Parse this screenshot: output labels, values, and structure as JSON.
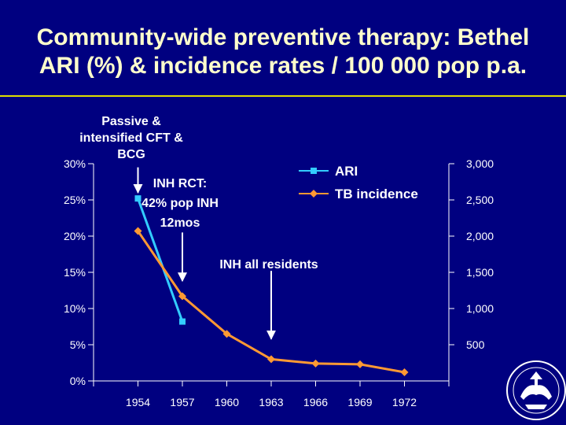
{
  "slide": {
    "title_line1": "Community-wide preventive therapy: Bethel",
    "title_line2": "ARI (%) & incidence rates / 100 000 pop p.a."
  },
  "colors": {
    "background": "#000080",
    "title": "#ffffcc",
    "rule": "#e0e000",
    "ari": "#33ccff",
    "tb": "#ff9933",
    "axis": "#ffffff"
  },
  "chart_data": {
    "type": "line",
    "x": [
      1954,
      1957,
      1960,
      1963,
      1966,
      1969,
      1972
    ],
    "x_tick_labels": [
      "1954",
      "1957",
      "1960",
      "1963",
      "1966",
      "1969",
      "1972"
    ],
    "xlim": [
      1951,
      1975
    ],
    "y_left": {
      "ylim": [
        0,
        30
      ],
      "ticks": [
        0,
        5,
        10,
        15,
        20,
        25,
        30
      ],
      "tick_labels": [
        "0%",
        "5%",
        "10%",
        "15%",
        "20%",
        "25%",
        "30%"
      ]
    },
    "y_right": {
      "ylim": [
        0,
        3000
      ],
      "ticks": [
        500,
        1000,
        1500,
        2000,
        2500,
        3000
      ],
      "tick_labels": [
        "500",
        "1,000",
        "1,500",
        "2,000",
        "2,500",
        "3,000"
      ]
    },
    "series": [
      {
        "name": "ARI",
        "axis": "left",
        "marker": "square",
        "x": [
          1954,
          1957
        ],
        "values": [
          25.2,
          8.2
        ]
      },
      {
        "name": "TB incidence",
        "axis": "right",
        "marker": "diamond",
        "x": [
          1954,
          1957,
          1960,
          1963,
          1966,
          1969,
          1972
        ],
        "values": [
          2070,
          1170,
          650,
          300,
          240,
          230,
          120
        ]
      }
    ],
    "annotations": [
      {
        "id": "passive",
        "lines": [
          "Passive &",
          "intensified CFT &",
          "BCG"
        ],
        "arrow_x": 1954,
        "arrow_from": 29.5,
        "arrow_to": 26
      },
      {
        "id": "inh_rct",
        "lines": [
          "INH RCT:",
          "42% pop INH",
          "12mos"
        ],
        "arrow_x": 1957,
        "arrow_from": 20.5,
        "arrow_to": 13.8
      },
      {
        "id": "inh_all",
        "lines": [
          "INH all residents"
        ],
        "arrow_x": 1963,
        "arrow_from": 15.2,
        "arrow_to": 5.8
      }
    ]
  }
}
